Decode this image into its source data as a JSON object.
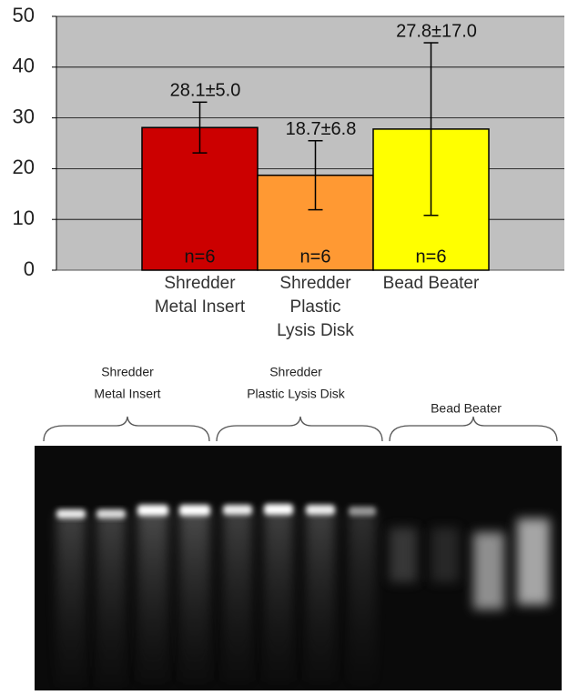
{
  "chart_data": {
    "type": "bar",
    "categories": [
      [
        "Shredder",
        "Metal Insert"
      ],
      [
        "Shredder",
        "Plastic",
        "Lysis Disk"
      ],
      [
        "Bead Beater"
      ]
    ],
    "values": [
      28.1,
      18.7,
      27.8
    ],
    "errors": [
      5.0,
      6.8,
      17.0
    ],
    "value_labels": [
      "28.1±5.0",
      "18.7±6.8",
      "27.8±17.0"
    ],
    "n_labels": [
      "n=6",
      "n=6",
      "n=6"
    ],
    "colors": [
      "#cc0000",
      "#ff9933",
      "#ffff00"
    ],
    "ylim": [
      0,
      50
    ],
    "yticks": [
      0,
      10,
      20,
      30,
      40,
      50
    ],
    "grid": true
  },
  "gel": {
    "labels": [
      [
        "Shredder",
        "Metal Insert"
      ],
      [
        "Shredder",
        "Plastic Lysis Disk"
      ],
      [
        "Bead Beater"
      ]
    ]
  }
}
